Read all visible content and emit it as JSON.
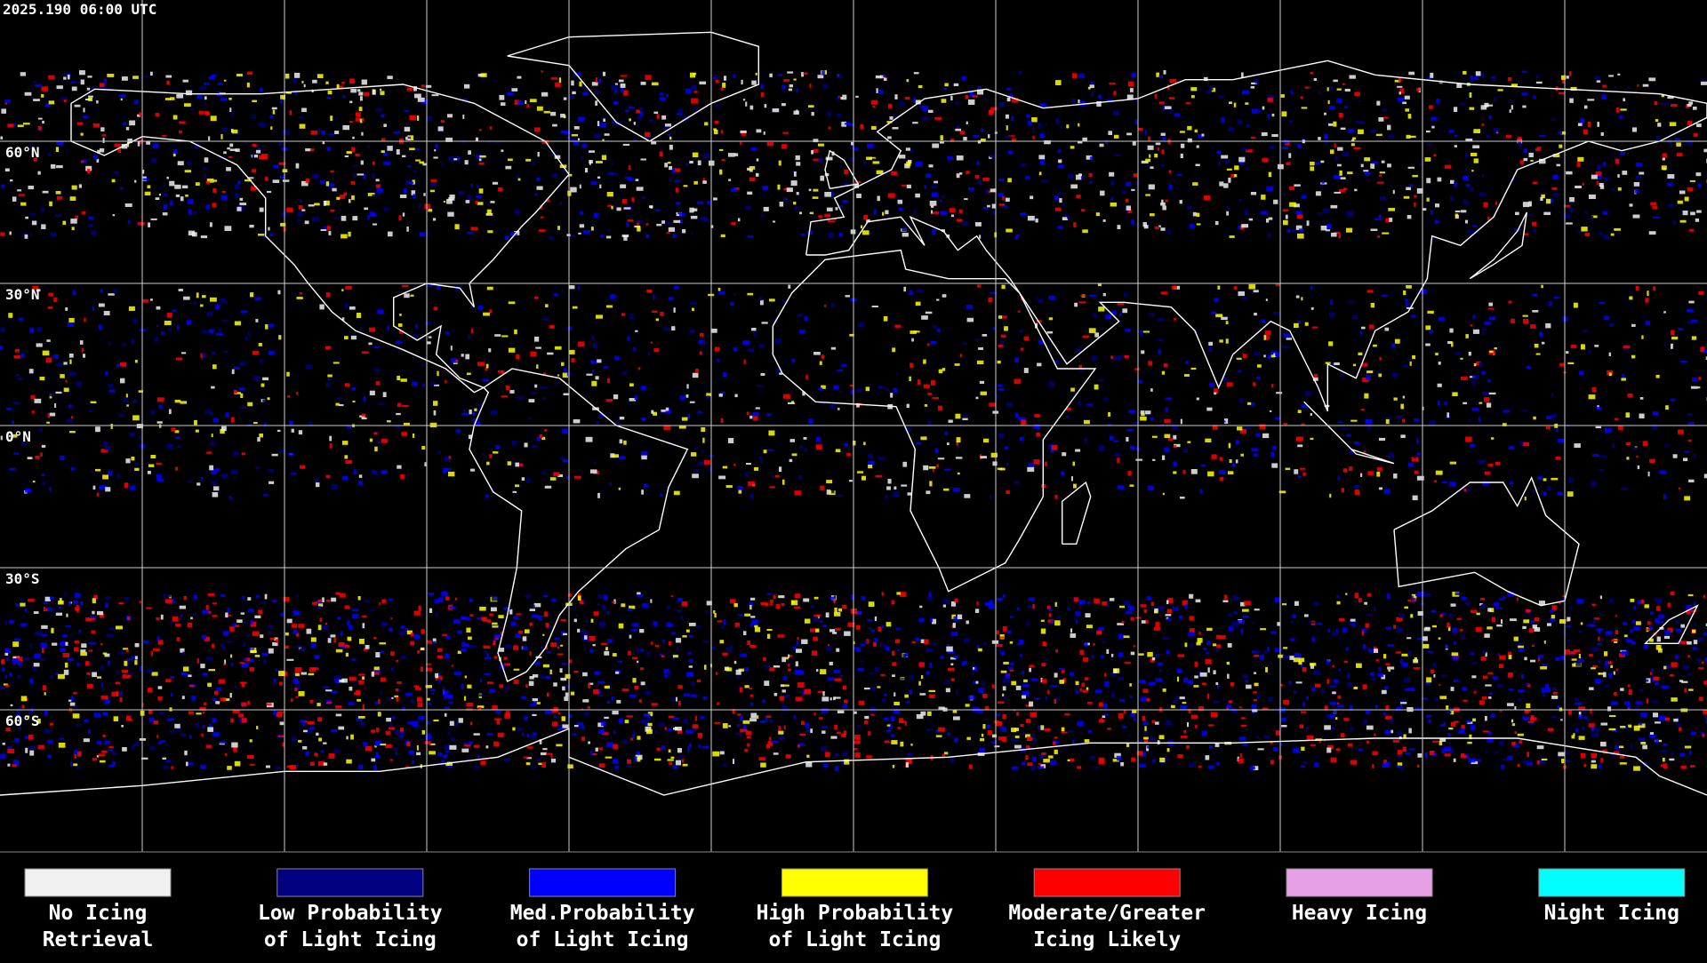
{
  "map": {
    "title": "2025.190 06:00 UTC",
    "lat_labels": [
      "60°N",
      "30°N",
      "0°N",
      "30°S",
      "60°S"
    ],
    "legend": [
      {
        "lines": [
          "No Icing",
          "Retrieval"
        ],
        "color": "#f0f0f0"
      },
      {
        "lines": [
          "Low Probability",
          "of Light Icing"
        ],
        "color": "#000080"
      },
      {
        "lines": [
          "Med.Probability",
          "of Light Icing"
        ],
        "color": "#0000ff"
      },
      {
        "lines": [
          "High Probability",
          "of Light Icing"
        ],
        "color": "#ffff00"
      },
      {
        "lines": [
          "Moderate/Greater",
          "Icing Likely"
        ],
        "color": "#ff0000"
      },
      {
        "lines": [
          "Heavy Icing"
        ],
        "color": "#e6a0e6"
      },
      {
        "lines": [
          "Night Icing"
        ],
        "color": "#00ffff"
      }
    ]
  }
}
